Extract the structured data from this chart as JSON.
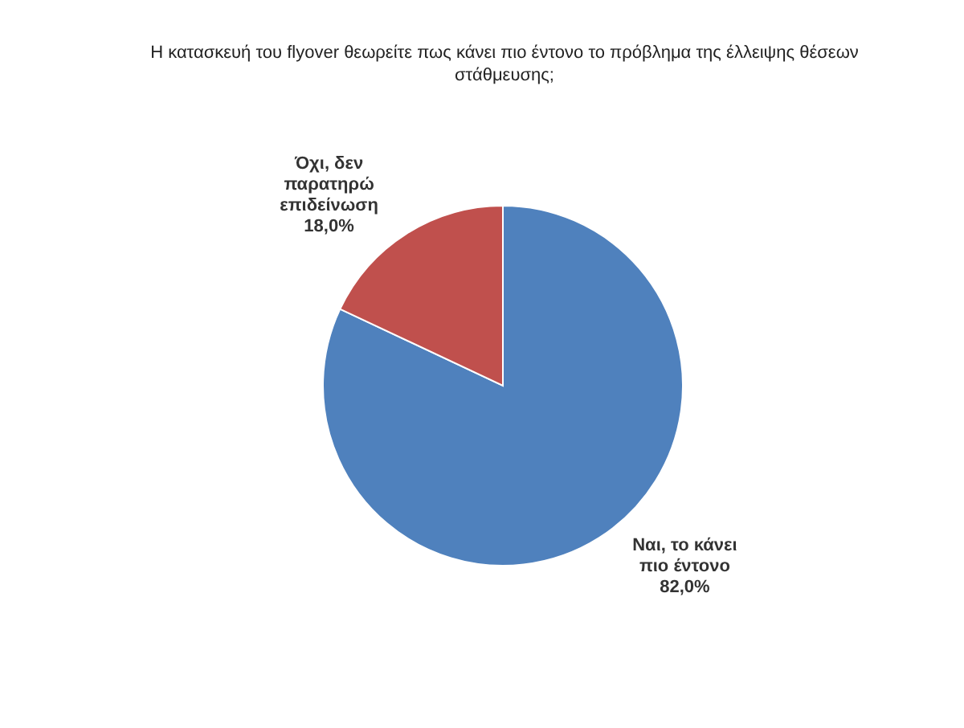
{
  "chart_data": {
    "type": "pie",
    "title": "Η κατασκευή του flyover θεωρείτε πως κάνει πιο έντονο το πρόβλημα της έλλειψης θέσεων στάθμευσης;",
    "categories": [
      "Ναι, το κάνει πιο έντονο",
      "Όχι, δεν παρατηρώ επιδείνωση"
    ],
    "values": [
      82,
      18
    ],
    "colors": [
      "#4f81bd",
      "#c0504d"
    ],
    "value_labels": [
      "82,0%",
      "18,0%"
    ]
  }
}
